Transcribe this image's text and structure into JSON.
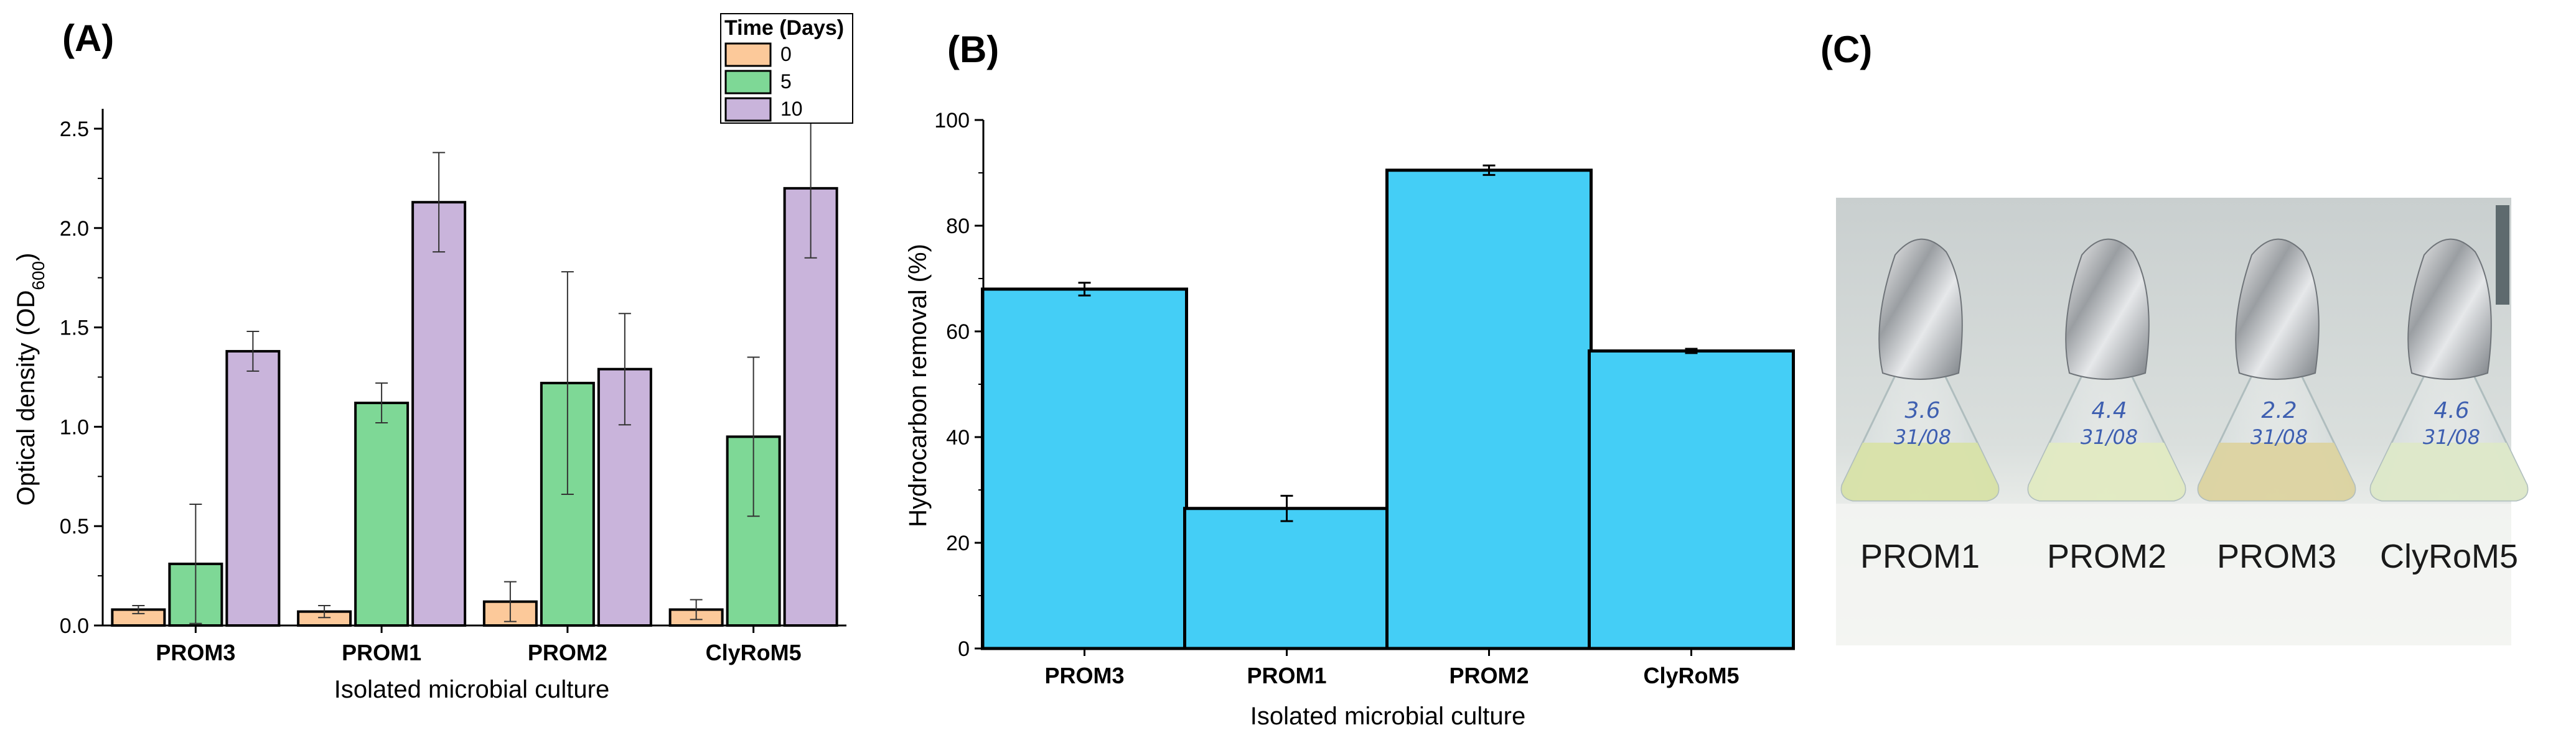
{
  "panels": {
    "a_label": "(A)",
    "b_label": "(B)",
    "c_label": "(C)"
  },
  "chart_data": [
    {
      "type": "bar",
      "panel": "A",
      "categories": [
        "PROM3",
        "PROM1",
        "PROM2",
        "ClyRoM5"
      ],
      "series": [
        {
          "name": "0",
          "color": "#FCC99A",
          "values": [
            0.08,
            0.07,
            0.12,
            0.08
          ],
          "errors": [
            0.02,
            0.03,
            0.1,
            0.05
          ]
        },
        {
          "name": "5",
          "color": "#7ED896",
          "values": [
            0.31,
            1.12,
            1.22,
            0.95
          ],
          "errors": [
            0.3,
            0.1,
            0.56,
            0.4
          ]
        },
        {
          "name": "10",
          "color": "#C9B4DB",
          "values": [
            1.38,
            2.13,
            1.29,
            2.2
          ],
          "errors": [
            0.1,
            0.25,
            0.28,
            0.35
          ]
        }
      ],
      "legend_title": "Time (Days)",
      "xlabel": "Isolated microbial culture",
      "ylabel": "Optical density (OD600)",
      "ylabel_main": "Optical density (OD",
      "ylabel_sub": "600",
      "ylabel_end": ")",
      "ylim": [
        0,
        2.6
      ],
      "yticks": [
        "0.0",
        "0.5",
        "1.0",
        "1.5",
        "2.0",
        "2.5"
      ],
      "legend_position": "top-right"
    },
    {
      "type": "bar",
      "panel": "B",
      "categories": [
        "PROM3",
        "PROM1",
        "PROM2",
        "ClyRoM5"
      ],
      "series": [
        {
          "name": "Hydrocarbon removal",
          "color": "#44CEF6",
          "values": [
            68,
            26.5,
            90.5,
            56.3
          ],
          "errors": [
            1.2,
            2.4,
            0.9,
            0.4
          ]
        }
      ],
      "xlabel": "Isolated microbial culture",
      "ylabel": "Hydrocarbon removal (%)",
      "ylim": [
        0,
        100
      ],
      "yticks": [
        "0",
        "20",
        "40",
        "60",
        "80",
        "100"
      ]
    }
  ],
  "photo": {
    "flask_labels": [
      "PROM1",
      "PROM2",
      "PROM3",
      "ClyRoM5"
    ],
    "handwriting": [
      "3.6 31/08",
      "4.4 31/08",
      "2.2 31/08",
      "4.6 31/08"
    ],
    "medium_colors": [
      "#D8E2A8",
      "#E2EAC2",
      "#DCD3A0",
      "#DDE8C8"
    ]
  }
}
